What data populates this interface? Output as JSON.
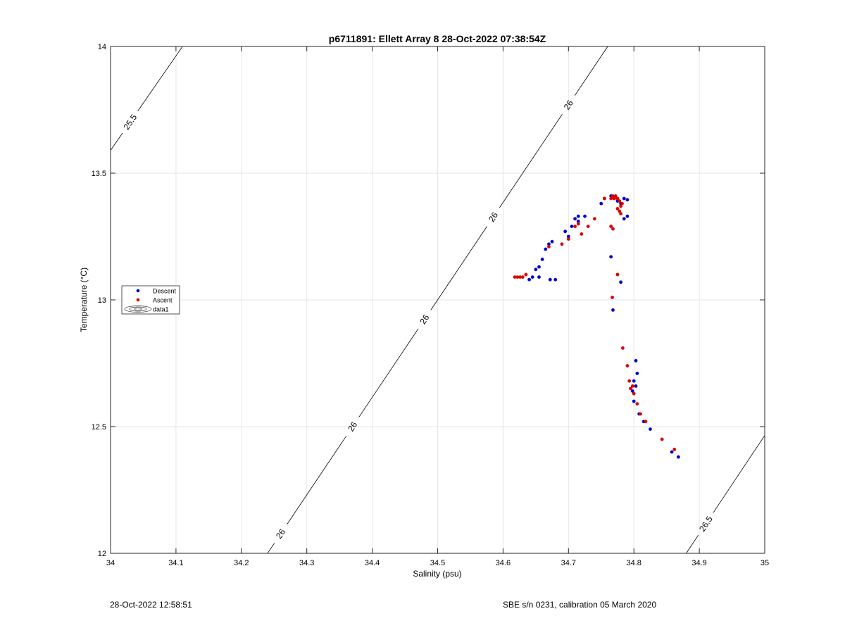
{
  "chart_data": {
    "type": "scatter",
    "title": "p6711891: Ellett Array 8 28-Oct-2022 07:38:54Z",
    "xlabel": "Salinity (psu)",
    "ylabel": "Temperature (°C)",
    "xlim": [
      34,
      35
    ],
    "ylim": [
      12,
      14
    ],
    "xticks": [
      "34",
      "34.1",
      "34.2",
      "34.3",
      "34.4",
      "34.5",
      "34.6",
      "34.7",
      "34.8",
      "34.9",
      "35"
    ],
    "yticks": [
      "12",
      "12.5",
      "13",
      "13.5",
      "14"
    ],
    "grid": true,
    "legend": {
      "placement": "left",
      "entries": [
        "Descent",
        "Ascent",
        "data1"
      ]
    },
    "series": [
      {
        "name": "Descent",
        "color": "#0000cc",
        "x": [
          34.64,
          34.645,
          34.65,
          34.655,
          34.66,
          34.665,
          34.67,
          34.675,
          34.695,
          34.7,
          34.705,
          34.71,
          34.715,
          34.715,
          34.725,
          34.75,
          34.755,
          34.765,
          34.77,
          34.775,
          34.78,
          34.785,
          34.79,
          34.79,
          34.785,
          34.765,
          34.78,
          34.768,
          34.672,
          34.68,
          34.655,
          34.803,
          34.805,
          34.8,
          34.798,
          34.8,
          34.803,
          34.808,
          34.815,
          34.825,
          34.858,
          34.868
        ],
        "y": [
          13.08,
          13.09,
          13.12,
          13.13,
          13.16,
          13.2,
          13.22,
          13.23,
          13.27,
          13.25,
          13.29,
          13.32,
          13.33,
          13.31,
          13.33,
          13.38,
          13.4,
          13.41,
          13.4,
          13.39,
          13.38,
          13.4,
          13.395,
          13.33,
          13.32,
          13.17,
          13.07,
          12.96,
          13.08,
          13.08,
          13.09,
          12.76,
          12.71,
          12.68,
          12.64,
          12.6,
          12.66,
          12.55,
          12.52,
          12.49,
          12.4,
          12.38
        ]
      },
      {
        "name": "Ascent",
        "color": "#dd0000",
        "x": [
          34.618,
          34.622,
          34.626,
          34.63,
          34.635,
          34.67,
          34.69,
          34.7,
          34.71,
          34.715,
          34.72,
          34.73,
          34.74,
          34.755,
          34.765,
          34.768,
          34.77,
          34.772,
          34.775,
          34.778,
          34.78,
          34.775,
          34.778,
          34.78,
          34.782,
          34.765,
          34.768,
          34.775,
          34.767,
          34.783,
          34.79,
          34.793,
          34.795,
          34.798,
          34.8,
          34.805,
          34.81,
          34.818,
          34.843,
          34.862
        ],
        "y": [
          13.09,
          13.09,
          13.09,
          13.09,
          13.1,
          13.21,
          13.22,
          13.24,
          13.29,
          13.3,
          13.26,
          13.29,
          13.32,
          13.4,
          13.4,
          13.41,
          13.4,
          13.41,
          13.4,
          13.39,
          13.37,
          13.36,
          13.35,
          13.34,
          13.38,
          13.29,
          13.28,
          13.1,
          13.01,
          12.81,
          12.74,
          12.68,
          12.65,
          12.66,
          12.63,
          12.59,
          12.55,
          12.52,
          12.45,
          12.41
        ]
      }
    ],
    "isopycnals": [
      {
        "label": "25.5",
        "x1": 34.0,
        "y1": 13.59,
        "x2": 34.11,
        "y2": 14.0,
        "labels_at": [
          34.03
        ]
      },
      {
        "label": "26",
        "x1": 34.24,
        "y1": 12.0,
        "x2": 34.76,
        "y2": 14.0,
        "labels_at": [
          34.26,
          34.37,
          34.48,
          34.585,
          34.7
        ]
      },
      {
        "label": "26.5",
        "x1": 34.88,
        "y1": 12.0,
        "x2": 35.0,
        "y2": 12.465,
        "labels_at": [
          34.91
        ]
      }
    ]
  },
  "footer": {
    "left": "28-Oct-2022 12:58:51",
    "right": "SBE s/n 0231, calibration 05 March 2020"
  }
}
